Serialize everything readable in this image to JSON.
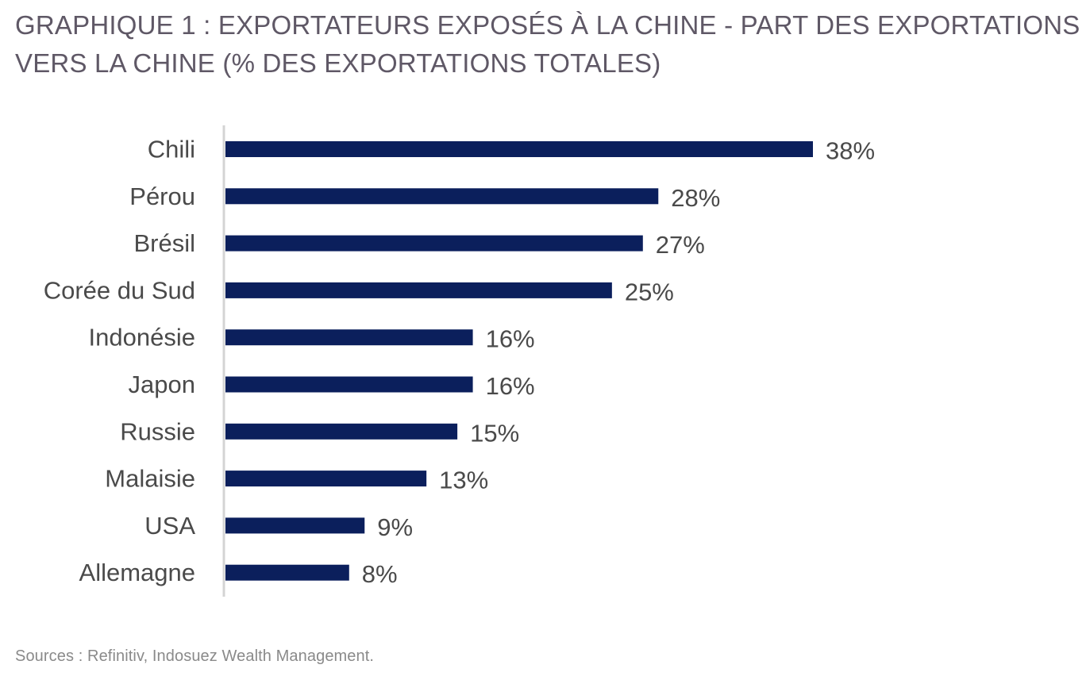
{
  "chart_data": {
    "type": "bar",
    "orientation": "horizontal",
    "title": "GRAPHIQUE 1 : EXPORTATEURS EXPOSÉS À LA CHINE - PART DES EXPORTATIONS VERS LA CHINE (% DES EXPORTATIONS TOTALES)",
    "categories": [
      "Chili",
      "Pérou",
      "Brésil",
      "Corée du Sud",
      "Indonésie",
      "Japon",
      "Russie",
      "Malaisie",
      "USA",
      "Allemagne"
    ],
    "values": [
      38,
      28,
      27,
      25,
      16,
      16,
      15,
      13,
      9,
      8
    ],
    "value_labels": [
      "38%",
      "28%",
      "27%",
      "25%",
      "16%",
      "16%",
      "15%",
      "13%",
      "9%",
      "8%"
    ],
    "xlabel": "",
    "ylabel": "",
    "xlim": [
      0,
      38
    ],
    "grid": false,
    "legend": "none",
    "bar_color": "#0b1f5c",
    "axis_color": "#d4d4d4",
    "label_color": "#4a4a4a",
    "source": "Sources : Refinitiv, Indosuez Wealth Management."
  }
}
